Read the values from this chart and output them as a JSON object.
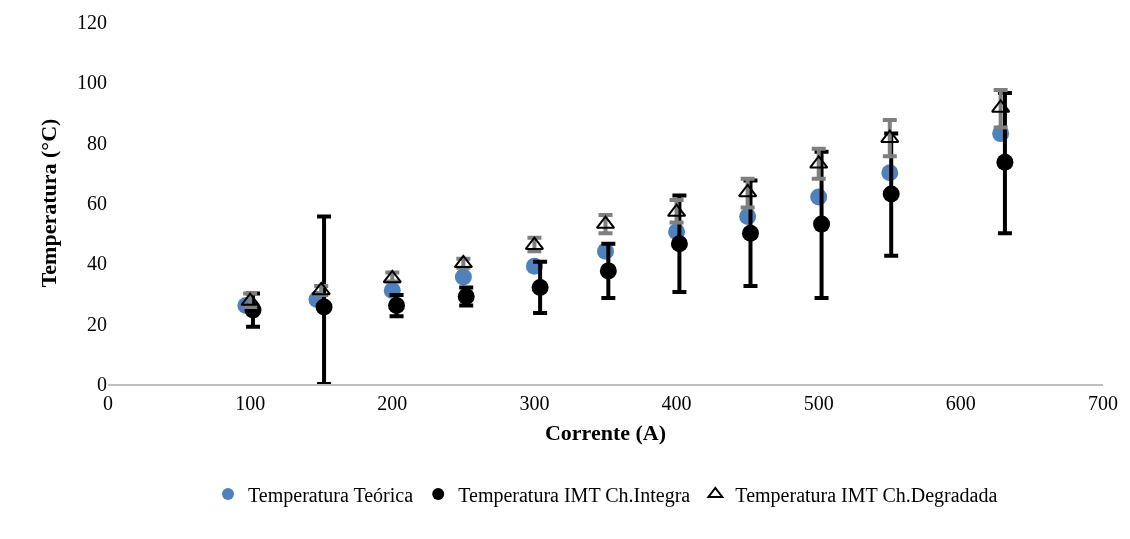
{
  "chart_data": {
    "type": "scatter",
    "xlabel": "Corrente (A)",
    "ylabel": "Temperatura (°C)",
    "xlim": [
      0,
      700
    ],
    "xticks": [
      0,
      100,
      200,
      300,
      400,
      500,
      600,
      700
    ],
    "ylim": [
      0,
      120
    ],
    "yticks": [
      0,
      20,
      40,
      60,
      80,
      100,
      120
    ],
    "grid": false,
    "legend": "bottom",
    "series": [
      {
        "name": "Temperatura Teórica",
        "color": "#4f81bd",
        "marker": "circle",
        "x": [
          97,
          147,
          200,
          250,
          300,
          350,
          400,
          450,
          500,
          550,
          628
        ],
        "values": [
          26,
          28,
          31,
          35.5,
          39,
          44,
          50.5,
          55.5,
          62,
          70,
          83
        ]
      },
      {
        "name": "Temperatura IMT Ch.Integra",
        "color": "#000000",
        "marker": "circle",
        "x": [
          102,
          152,
          203,
          252,
          304,
          352,
          402,
          452,
          502,
          551,
          631
        ],
        "values": [
          24.5,
          25.5,
          26,
          29,
          32,
          37.5,
          46.5,
          50,
          53,
          63,
          73.5
        ],
        "errors": [
          [
            19,
            30
          ],
          [
            0,
            55.5
          ],
          [
            22.5,
            29.5
          ],
          [
            26,
            32
          ],
          [
            23.5,
            40.5
          ],
          [
            28.5,
            46.5
          ],
          [
            30.5,
            62.5
          ],
          [
            32.5,
            67.5
          ],
          [
            28.5,
            77
          ],
          [
            42.5,
            83
          ],
          [
            50,
            96.5
          ]
        ]
      },
      {
        "name": "Temperatura IMT Ch.Degradada",
        "color": "#000000",
        "marker": "triangle",
        "x": [
          100,
          150,
          200,
          250,
          300,
          350,
          400,
          450,
          500,
          550,
          628
        ],
        "values": [
          27.5,
          31,
          35,
          40,
          46,
          53,
          57,
          63.5,
          73,
          81.5,
          91.5
        ],
        "errors": [
          [
            25.5,
            30
          ],
          [
            29.5,
            32.5
          ],
          [
            34,
            37
          ],
          [
            38.5,
            41.5
          ],
          [
            44,
            48.5
          ],
          [
            50,
            56
          ],
          [
            53.5,
            61
          ],
          [
            58.5,
            68
          ],
          [
            68,
            78
          ],
          [
            75.5,
            87.5
          ],
          [
            85,
            97.5
          ]
        ]
      }
    ]
  }
}
